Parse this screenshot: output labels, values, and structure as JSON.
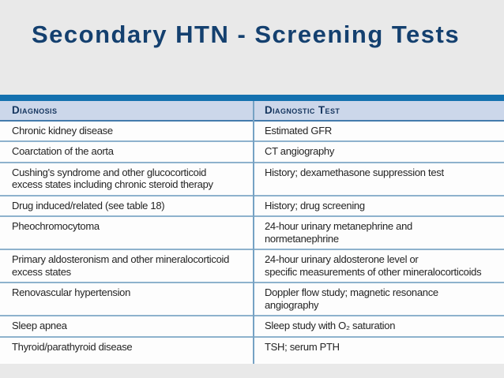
{
  "slide": {
    "title": "Secondary HTN - Screening Tests",
    "colors": {
      "background": "#e9e9e9",
      "title_text": "#14406f",
      "table_top_border": "#1471af",
      "header_background": "#ccd7ea",
      "header_text": "#15355e",
      "row_separator": "#8eb2cd",
      "column_divider": "#76a2c4",
      "body_text": "#242424",
      "table_background": "#fdfdfd"
    }
  },
  "table": {
    "columns": [
      {
        "label": "Diagnosis"
      },
      {
        "label": "Diagnostic Test"
      }
    ],
    "rows": [
      {
        "diagnosis": "Chronic kidney disease",
        "test": "Estimated GFR"
      },
      {
        "diagnosis": "Coarctation of the aorta",
        "test": "CT angiography"
      },
      {
        "diagnosis": "Cushing's syndrome and other glucocorticoid\nexcess states including chronic steroid therapy",
        "test": "History; dexamethasone suppression test"
      },
      {
        "diagnosis": "Drug induced/related (see table 18)",
        "test": "History; drug screening"
      },
      {
        "diagnosis": "Pheochromocytoma",
        "test": "24-hour urinary metanephrine and\nnormetanephrine"
      },
      {
        "diagnosis": "Primary aldosteronism and other mineralocorticoid\nexcess states",
        "test": "24-hour urinary aldosterone level or\nspecific measurements of other mineralocorticoids"
      },
      {
        "diagnosis": "Renovascular hypertension",
        "test": "Doppler flow study; magnetic resonance\nangiography"
      },
      {
        "diagnosis": "Sleep apnea",
        "test": "Sleep study with O₂ saturation"
      },
      {
        "diagnosis": "Thyroid/parathyroid disease",
        "test": "TSH; serum PTH"
      }
    ]
  }
}
